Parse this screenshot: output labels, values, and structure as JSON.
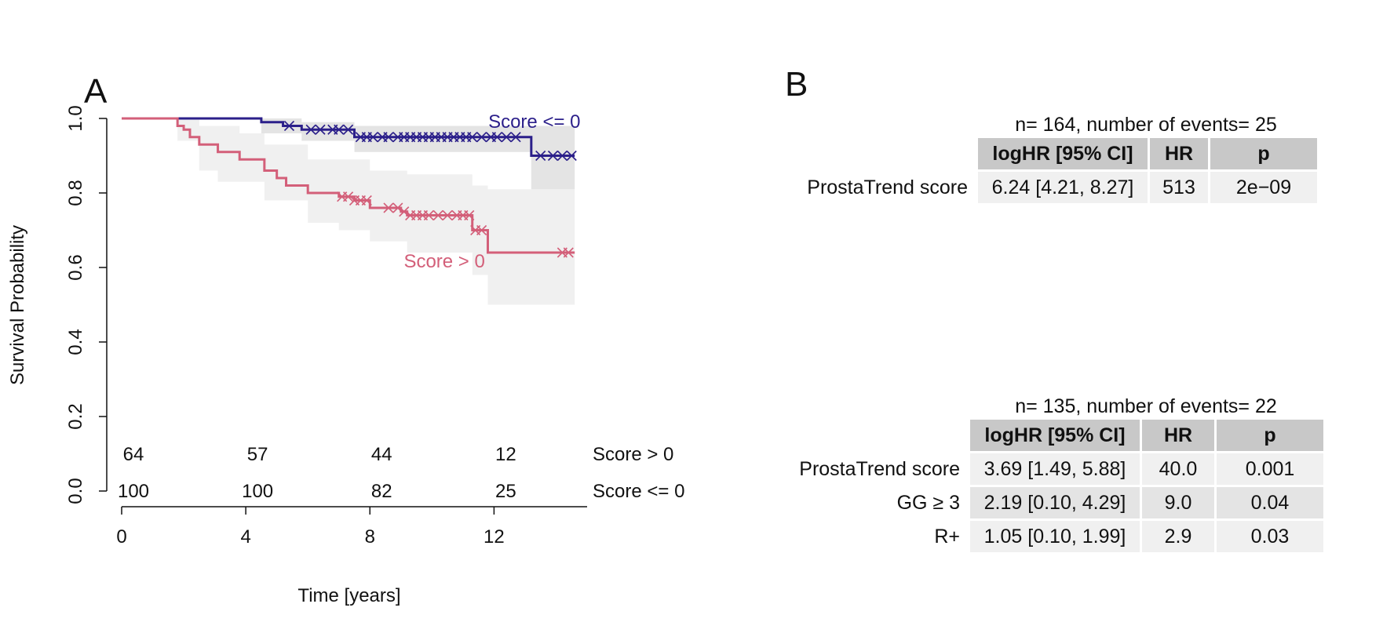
{
  "panel_labels": {
    "a": "A",
    "b": "B"
  },
  "colors": {
    "low_score": "#2b1f8a",
    "high_score": "#d35f79",
    "ci_band": "#e6e6e6",
    "header_bg": "#c8c8c8"
  },
  "chart_data": {
    "type": "line",
    "subtype": "kaplan-meier",
    "title": "",
    "xlabel": "Time [years]",
    "ylabel": "Survival Probability",
    "xlim": [
      0,
      15
    ],
    "ylim": [
      0,
      1
    ],
    "xticks": [
      0,
      4,
      8,
      12
    ],
    "yticks": [
      "0.0",
      "0.2",
      "0.4",
      "0.6",
      "0.8",
      "1.0"
    ],
    "grid": false,
    "series": [
      {
        "name": "Score <= 0",
        "color": "#2b1f8a",
        "steps": [
          [
            0,
            1.0
          ],
          [
            4.5,
            0.99
          ],
          [
            5.2,
            0.98
          ],
          [
            5.8,
            0.97
          ],
          [
            7.5,
            0.95
          ],
          [
            13.2,
            0.9
          ],
          [
            14.6,
            0.9
          ]
        ],
        "ci_lower": [
          [
            0,
            1.0
          ],
          [
            4.5,
            0.96
          ],
          [
            5.8,
            0.94
          ],
          [
            7.5,
            0.91
          ],
          [
            13.2,
            0.81
          ],
          [
            14.6,
            0.81
          ]
        ],
        "ci_upper": [
          [
            0,
            1.0
          ],
          [
            4.5,
            1.0
          ],
          [
            5.8,
            0.99
          ],
          [
            7.5,
            0.98
          ],
          [
            13.2,
            0.98
          ],
          [
            14.6,
            0.98
          ]
        ],
        "censored": [
          5.4,
          6.1,
          6.4,
          6.8,
          7.0,
          7.3,
          7.7,
          7.9,
          8.1,
          8.4,
          8.6,
          8.9,
          9.1,
          9.3,
          9.5,
          9.7,
          9.9,
          10.1,
          10.3,
          10.5,
          10.7,
          10.9,
          11.1,
          11.3,
          11.6,
          11.9,
          12.1,
          12.4,
          12.7,
          13.5,
          13.9,
          14.2,
          14.5
        ]
      },
      {
        "name": "Score > 0",
        "color": "#d35f79",
        "steps": [
          [
            0,
            1.0
          ],
          [
            1.8,
            0.98
          ],
          [
            2.0,
            0.97
          ],
          [
            2.2,
            0.95
          ],
          [
            2.5,
            0.93
          ],
          [
            3.1,
            0.91
          ],
          [
            3.8,
            0.89
          ],
          [
            4.6,
            0.86
          ],
          [
            5.0,
            0.84
          ],
          [
            5.3,
            0.82
          ],
          [
            5.8,
            0.82
          ],
          [
            6.0,
            0.8
          ],
          [
            7.0,
            0.79
          ],
          [
            7.5,
            0.78
          ],
          [
            8.0,
            0.76
          ],
          [
            9.0,
            0.75
          ],
          [
            9.2,
            0.74
          ],
          [
            11.3,
            0.7
          ],
          [
            11.8,
            0.64
          ],
          [
            14.6,
            0.64
          ]
        ],
        "ci_lower": [
          [
            0,
            1.0
          ],
          [
            1.8,
            0.94
          ],
          [
            2.5,
            0.86
          ],
          [
            3.1,
            0.83
          ],
          [
            4.6,
            0.78
          ],
          [
            6.0,
            0.72
          ],
          [
            7.0,
            0.7
          ],
          [
            8.0,
            0.67
          ],
          [
            9.2,
            0.64
          ],
          [
            11.3,
            0.58
          ],
          [
            11.8,
            0.5
          ],
          [
            14.6,
            0.5
          ]
        ],
        "ci_upper": [
          [
            0,
            1.0
          ],
          [
            1.8,
            1.0
          ],
          [
            2.5,
            0.98
          ],
          [
            3.8,
            0.96
          ],
          [
            4.6,
            0.93
          ],
          [
            6.0,
            0.89
          ],
          [
            8.0,
            0.86
          ],
          [
            9.2,
            0.85
          ],
          [
            11.3,
            0.82
          ],
          [
            11.8,
            0.81
          ],
          [
            14.6,
            0.81
          ]
        ],
        "censored": [
          7.1,
          7.3,
          7.5,
          7.7,
          7.9,
          8.6,
          8.9,
          9.1,
          9.3,
          9.5,
          9.7,
          9.9,
          10.2,
          10.5,
          10.8,
          11.0,
          11.2,
          11.4,
          11.6,
          14.2,
          14.4
        ]
      }
    ],
    "annotations": [
      {
        "text": "Score <= 0",
        "x": 13.3,
        "y": 0.975,
        "series": 0
      },
      {
        "text": "Score > 0",
        "x": 10.4,
        "y": 0.6,
        "series": 1
      }
    ],
    "risk_table": {
      "times": [
        0,
        4,
        8,
        12
      ],
      "rows": [
        {
          "label": "Score > 0",
          "counts": [
            "64",
            "57",
            "44",
            "12"
          ]
        },
        {
          "label": "Score <= 0",
          "counts": [
            "100",
            "100",
            "82",
            "25"
          ]
        }
      ]
    }
  },
  "table1": {
    "caption": "n= 164, number of events= 25",
    "headers": [
      "logHR [95% CI]",
      "HR",
      "p"
    ],
    "rows": [
      {
        "name": "ProstaTrend score",
        "cells": [
          "6.24 [4.21, 8.27]",
          "513",
          "2e−09"
        ]
      }
    ]
  },
  "table2": {
    "caption": "n= 135, number of events= 22",
    "headers": [
      "logHR [95% CI]",
      "HR",
      "p"
    ],
    "rows": [
      {
        "name": "ProstaTrend score",
        "cells": [
          "3.69 [1.49, 5.88]",
          "40.0",
          "0.001"
        ]
      },
      {
        "name": "GG ≥ 3",
        "cells": [
          "2.19 [0.10, 4.29]",
          "9.0",
          "0.04"
        ]
      },
      {
        "name": "R+",
        "cells": [
          "1.05 [0.10, 1.99]",
          "2.9",
          "0.03"
        ]
      }
    ]
  }
}
